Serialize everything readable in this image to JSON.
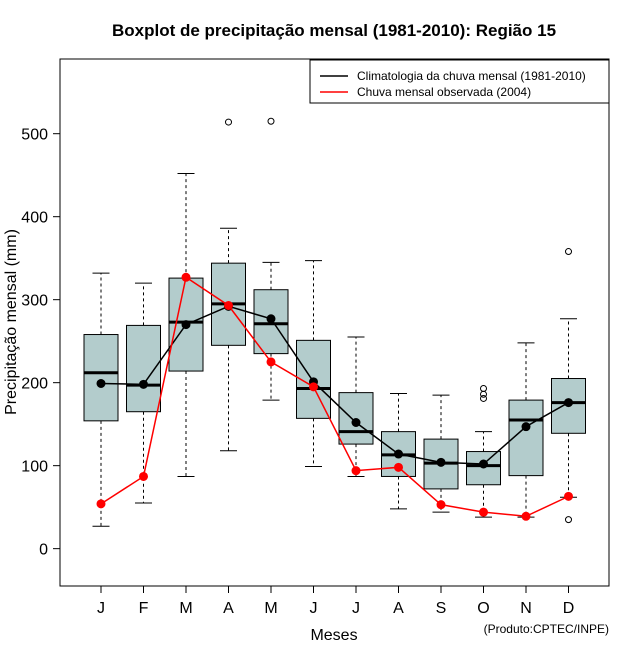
{
  "chart_data": {
    "type": "boxplot",
    "title": "Boxplot de precipitação mensal (1981-2010): Região 15",
    "xlabel": "Meses",
    "ylabel": "Precipitação mensal (mm)",
    "ylim": [
      -45,
      590
    ],
    "yticks": [
      0,
      100,
      200,
      300,
      400,
      500
    ],
    "categories": [
      "J",
      "F",
      "M",
      "A",
      "M",
      "J",
      "J",
      "A",
      "S",
      "O",
      "N",
      "D"
    ],
    "boxes": [
      {
        "min": 27,
        "q1": 154,
        "median": 212,
        "q3": 258,
        "max": 332,
        "outliers": []
      },
      {
        "min": 55,
        "q1": 165,
        "median": 197,
        "q3": 269,
        "max": 320,
        "outliers": []
      },
      {
        "min": 87,
        "q1": 214,
        "median": 273,
        "q3": 326,
        "max": 452,
        "outliers": []
      },
      {
        "min": 118,
        "q1": 245,
        "median": 295,
        "q3": 344,
        "max": 386,
        "outliers": [
          514
        ]
      },
      {
        "min": 179,
        "q1": 235,
        "median": 271,
        "q3": 312,
        "max": 345,
        "outliers": [
          515
        ]
      },
      {
        "min": 99,
        "q1": 157,
        "median": 193,
        "q3": 251,
        "max": 347,
        "outliers": []
      },
      {
        "min": 87,
        "q1": 126,
        "median": 141,
        "q3": 188,
        "max": 255,
        "outliers": []
      },
      {
        "min": 48,
        "q1": 87,
        "median": 113,
        "q3": 141,
        "max": 187,
        "outliers": []
      },
      {
        "min": 44,
        "q1": 72,
        "median": 103,
        "q3": 132,
        "max": 185,
        "outliers": []
      },
      {
        "min": 38,
        "q1": 77,
        "median": 100,
        "q3": 117,
        "max": 141,
        "outliers": [
          181,
          186,
          193
        ]
      },
      {
        "min": 38,
        "q1": 88,
        "median": 155,
        "q3": 179,
        "max": 248,
        "outliers": []
      },
      {
        "min": 62,
        "q1": 139,
        "median": 176,
        "q3": 205,
        "max": 277,
        "outliers": [
          35,
          358
        ]
      }
    ],
    "series": [
      {
        "name": "Climatologia da chuva mensal (1981-2010)",
        "color": "#000000",
        "values": [
          199,
          198,
          270,
          292,
          277,
          201,
          152,
          114,
          104,
          102,
          147,
          176
        ]
      },
      {
        "name": "Chuva mensal observada (2004)",
        "color": "#ff0000",
        "values": [
          54,
          87,
          327,
          293,
          225,
          195,
          94,
          98,
          53,
          44,
          39,
          63
        ]
      }
    ],
    "box_fill": "#b3cccc",
    "legend_position": "top-right",
    "credit": "(Produto:CPTEC/INPE)"
  }
}
